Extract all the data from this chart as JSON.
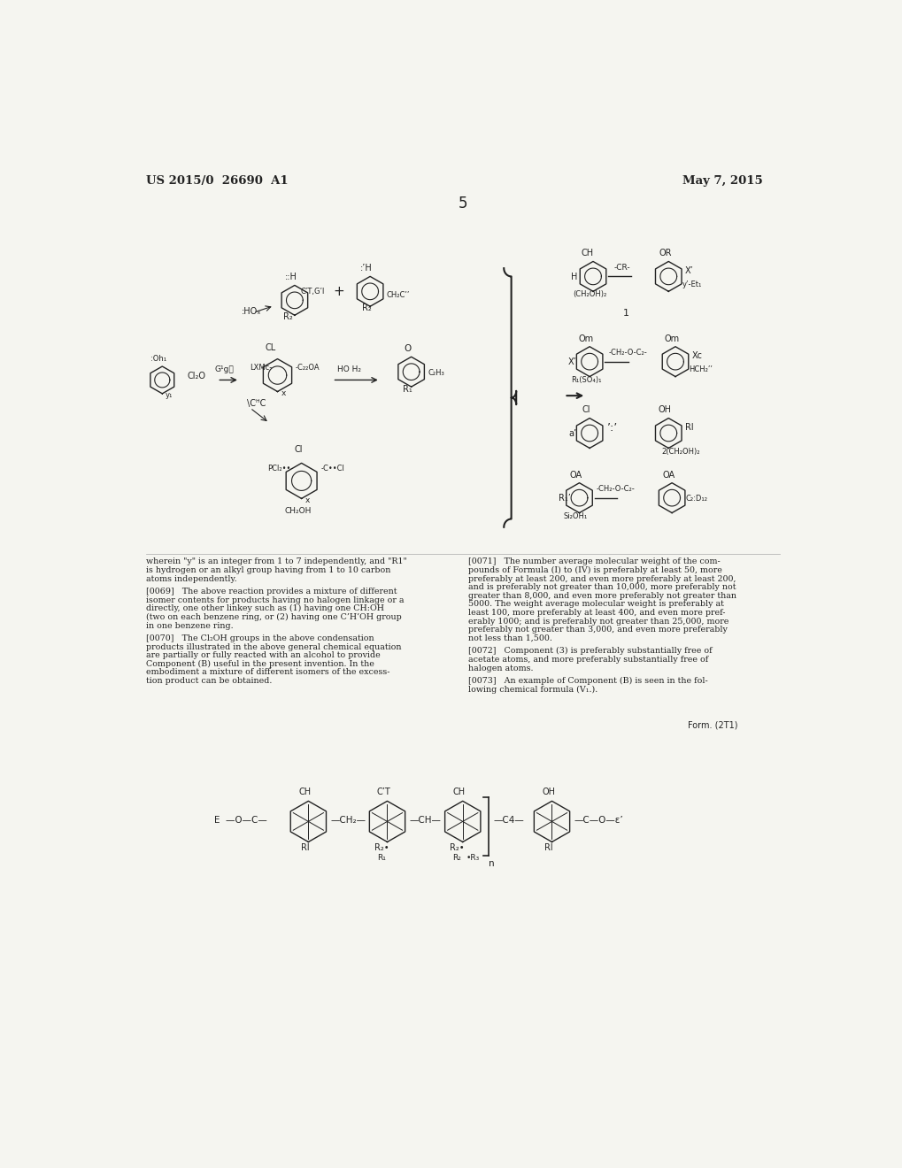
{
  "page_number": "5",
  "header_left": "US 2015/0  26690  A1",
  "header_right": "May 7, 2015",
  "background_color": "#f5f5f0",
  "text_color": "#222222",
  "figsize": [
    10.2,
    13.2
  ],
  "dpi": 100,
  "gray_text": "#555555"
}
